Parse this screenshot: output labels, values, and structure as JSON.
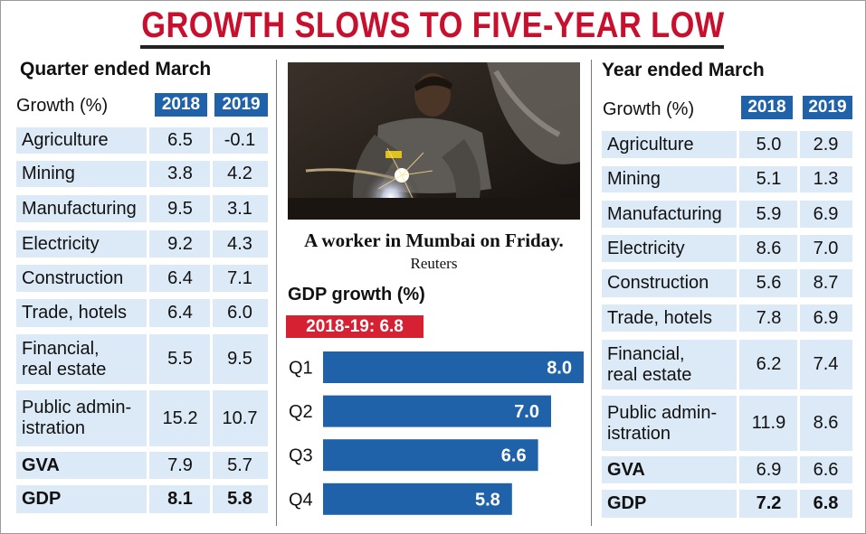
{
  "title": "GROWTH SLOWS TO FIVE-YEAR LOW",
  "colors": {
    "title": "#c8102e",
    "year_badge": "#1f62a9",
    "row_fill": "#dce9f6",
    "bar": "#1f62a9",
    "annual_badge": "#d62132"
  },
  "quarter": {
    "heading": "Quarter ended March",
    "growth_label": "Growth (%)",
    "years": [
      "2018",
      "2019"
    ],
    "rows": [
      {
        "label": "Agriculture",
        "v2018": "6.5",
        "v2019": "-0.1",
        "bold": false
      },
      {
        "label": "Mining",
        "v2018": "3.8",
        "v2019": "4.2",
        "bold": false
      },
      {
        "label": "Manufacturing",
        "v2018": "9.5",
        "v2019": "3.1",
        "bold": false
      },
      {
        "label": "Electricity",
        "v2018": "9.2",
        "v2019": "4.3",
        "bold": false
      },
      {
        "label": "Construction",
        "v2018": "6.4",
        "v2019": "7.1",
        "bold": false
      },
      {
        "label": "Trade, hotels",
        "v2018": "6.4",
        "v2019": "6.0",
        "bold": false
      },
      {
        "label": "Financial,\nreal estate",
        "v2018": "5.5",
        "v2019": "9.5",
        "bold": false
      },
      {
        "label": "Public admin-\nistration",
        "v2018": "15.2",
        "v2019": "10.7",
        "bold": false
      },
      {
        "label": "GVA",
        "v2018": "7.9",
        "v2019": "5.7",
        "bold": true,
        "plain_nums": true
      },
      {
        "label": "GDP",
        "v2018": "8.1",
        "v2019": "5.8",
        "bold": true,
        "plain_nums": false
      }
    ]
  },
  "year": {
    "heading": "Year ended March",
    "growth_label": "Growth (%)",
    "years": [
      "2018",
      "2019"
    ],
    "rows": [
      {
        "label": "Agriculture",
        "v2018": "5.0",
        "v2019": "2.9",
        "bold": false
      },
      {
        "label": "Mining",
        "v2018": "5.1",
        "v2019": "1.3",
        "bold": false
      },
      {
        "label": "Manufacturing",
        "v2018": "5.9",
        "v2019": "6.9",
        "bold": false
      },
      {
        "label": "Electricity",
        "v2018": "8.6",
        "v2019": "7.0",
        "bold": false
      },
      {
        "label": "Construction",
        "v2018": "5.6",
        "v2019": "8.7",
        "bold": false
      },
      {
        "label": "Trade, hotels",
        "v2018": "7.8",
        "v2019": "6.9",
        "bold": false
      },
      {
        "label": "Financial,\nreal estate",
        "v2018": "6.2",
        "v2019": "7.4",
        "bold": false
      },
      {
        "label": "Public admin-\nistration",
        "v2018": "11.9",
        "v2019": "8.6",
        "bold": false
      },
      {
        "label": "GVA",
        "v2018": "6.9",
        "v2019": "6.6",
        "bold": true,
        "plain_nums": true
      },
      {
        "label": "GDP",
        "v2018": "7.2",
        "v2019": "6.8",
        "bold": true,
        "plain_nums": false
      }
    ]
  },
  "photo": {
    "caption_main": "A worker in Mumbai on Friday.",
    "caption_credit": "Reuters"
  },
  "chart_data": {
    "type": "bar",
    "orientation": "horizontal",
    "title": "GDP growth (%)",
    "annual_label": "2018-19: 6.8",
    "categories": [
      "Q1",
      "Q2",
      "Q3",
      "Q4"
    ],
    "values": [
      8.0,
      7.0,
      6.6,
      5.8
    ],
    "value_labels": [
      "8.0",
      "7.0",
      "6.6",
      "5.8"
    ],
    "xlim": [
      0,
      8.0
    ]
  }
}
